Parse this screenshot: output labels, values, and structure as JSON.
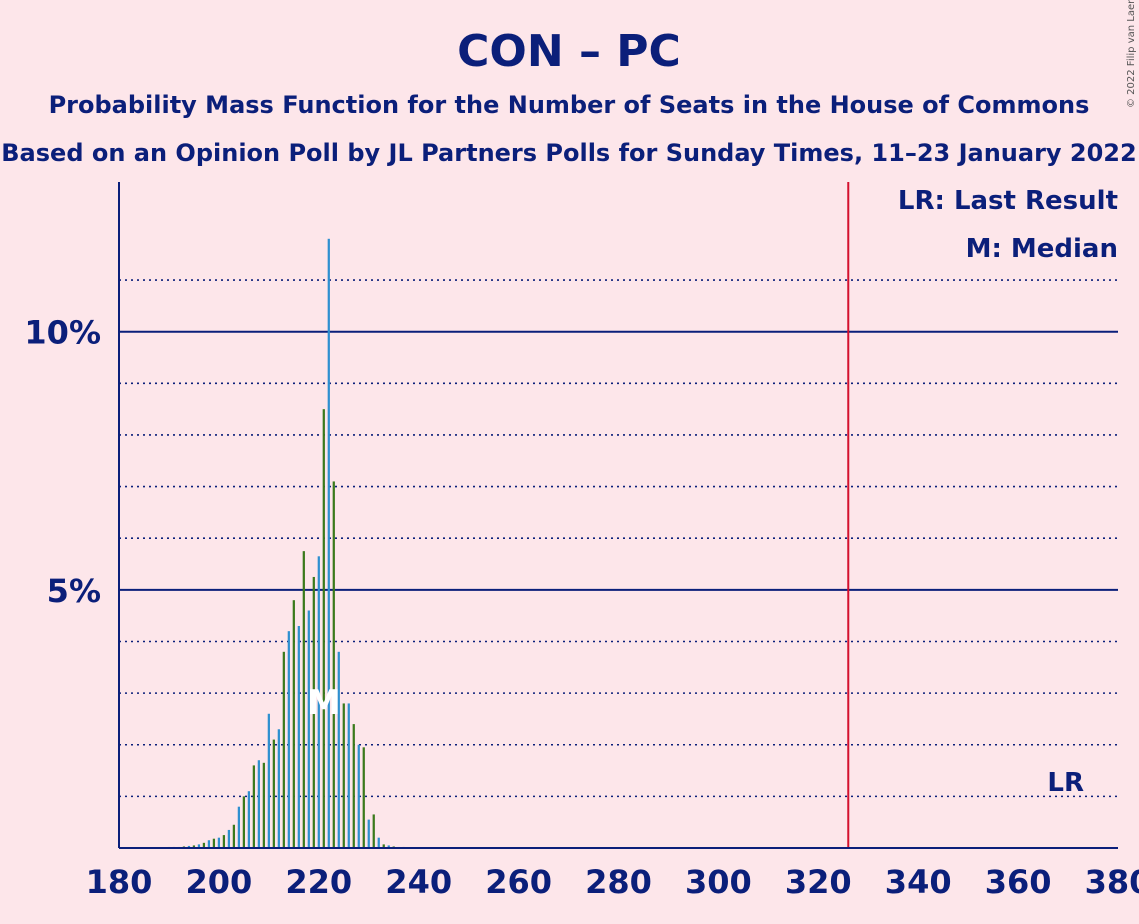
{
  "copyright": "© 2022 Filip van Laenen",
  "chart_data": {
    "type": "bar",
    "title": "CON – PC",
    "subtitle1": "Probability Mass Function for the Number of Seats in the House of Commons",
    "subtitle2": "Based on an Opinion Poll by JL Partners Polls for Sunday Times, 11–23 January 2022",
    "xlabel": "",
    "ylabel": "",
    "xlim": [
      180,
      380
    ],
    "ylim": [
      0,
      12.9
    ],
    "x_ticks": [
      180,
      200,
      220,
      240,
      260,
      280,
      300,
      320,
      340,
      360,
      380
    ],
    "y_ticks": [
      {
        "value": 5,
        "label": "5%"
      },
      {
        "value": 10,
        "label": "10%"
      }
    ],
    "minor_gridlines": [
      1,
      2,
      3,
      4,
      6,
      7,
      8,
      9,
      11
    ],
    "last_result": 326,
    "median": 221,
    "legend": {
      "lr": "LR: Last Result",
      "m": "M: Median",
      "lr_marker": "LR",
      "m_marker": "M"
    },
    "colors": {
      "background": "#fde6ea",
      "axis": "#0b1f7a",
      "bar_blue": "#2e90d0",
      "bar_green": "#3b7a1c",
      "last_result_line": "#d4102e",
      "median_marker": "#ffffff"
    },
    "x": [
      187,
      188,
      189,
      190,
      191,
      192,
      193,
      194,
      195,
      196,
      197,
      198,
      199,
      200,
      201,
      202,
      203,
      204,
      205,
      206,
      207,
      208,
      209,
      210,
      211,
      212,
      213,
      214,
      215,
      216,
      217,
      218,
      219,
      220,
      221,
      222,
      223,
      224,
      225,
      226,
      227,
      228,
      229,
      230,
      231,
      232,
      233,
      234,
      235,
      236,
      237,
      238,
      239,
      240
    ],
    "values": [
      0.01,
      0.01,
      0.01,
      0.02,
      0.02,
      0.02,
      0.03,
      0.04,
      0.05,
      0.07,
      0.1,
      0.15,
      0.18,
      0.2,
      0.25,
      0.35,
      0.45,
      0.8,
      1.0,
      1.1,
      1.6,
      1.7,
      1.65,
      2.6,
      2.1,
      2.3,
      3.8,
      4.2,
      4.8,
      4.3,
      5.75,
      4.6,
      5.25,
      5.65,
      8.5,
      11.8,
      7.1,
      3.8,
      2.8,
      2.8,
      2.4,
      2.0,
      1.95,
      0.55,
      0.65,
      0.2,
      0.07,
      0.05,
      0.03,
      0.02,
      0.02,
      0.01,
      0.01,
      0.01
    ]
  }
}
